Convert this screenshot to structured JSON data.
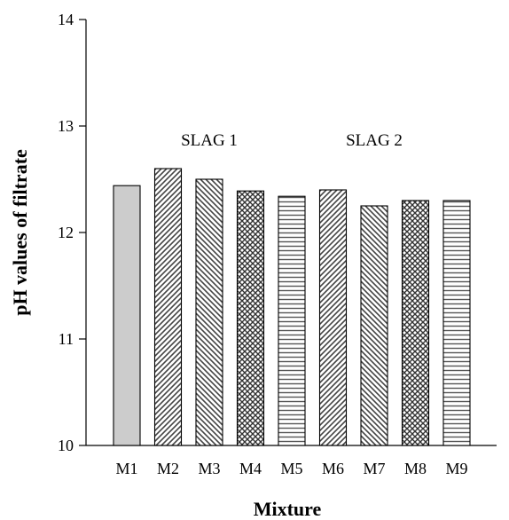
{
  "chart_data": {
    "type": "bar",
    "title": "",
    "xlabel": "Mixture",
    "ylabel": "pH values of filtrate",
    "ylim": [
      10,
      14
    ],
    "yticks": [
      10,
      11,
      12,
      13,
      14
    ],
    "categories": [
      "M1",
      "M2",
      "M3",
      "M4",
      "M5",
      "M6",
      "M7",
      "M8",
      "M9"
    ],
    "values": [
      12.44,
      12.6,
      12.5,
      12.39,
      12.34,
      12.4,
      12.25,
      12.3,
      12.3
    ],
    "bar_patterns": [
      "solid-gray",
      "diag-right",
      "diag-left",
      "crosshatch",
      "horizontal",
      "diag-right",
      "diag-left",
      "crosshatch",
      "horizontal"
    ],
    "annotations": [
      {
        "text": "SLAG 1",
        "category": "M3",
        "y": 12.9
      },
      {
        "text": "SLAG 2",
        "category": "M7",
        "y": 12.9
      }
    ],
    "grid": false,
    "legend": "none"
  }
}
